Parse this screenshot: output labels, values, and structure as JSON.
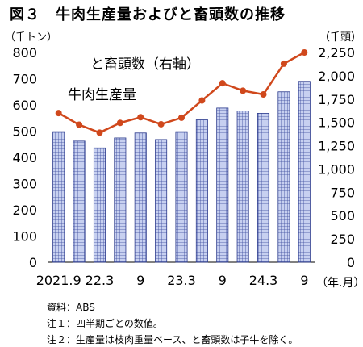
{
  "title": "図３　牛肉生産量およびと畜頭数の推移",
  "notes": [
    "資料：ABS",
    "注１：四半期ごとの数値。",
    "注２：生産量は枝肉重量ベース、と畜頭数は子牛を除く。"
  ],
  "chart_data": {
    "type": "bar",
    "categories": [
      "2021.9",
      "",
      "22.3",
      "",
      "9",
      "",
      "23.3",
      "",
      "9",
      "",
      "24.3",
      "",
      "9"
    ],
    "x_tick_labels": [
      "2021.9",
      "22.3",
      "9",
      "23.3",
      "9",
      "24.3",
      "9"
    ],
    "x_unit": "（年.月）",
    "series": [
      {
        "name": "牛肉生産量",
        "type": "bar",
        "axis": "left",
        "unit": "（千トン）",
        "values": [
          498,
          462,
          436,
          474,
          493,
          468,
          498,
          543,
          588,
          577,
          568,
          650,
          690
        ]
      },
      {
        "name": "と畜頭数（右軸）",
        "type": "line",
        "axis": "right",
        "unit": "（千頭）",
        "values": [
          1600,
          1475,
          1390,
          1495,
          1555,
          1480,
          1550,
          1735,
          1920,
          1840,
          1800,
          2130,
          2250
        ]
      }
    ],
    "y_left": {
      "unit": "（千トン）",
      "lim": [
        0,
        800
      ],
      "ticks": [
        0,
        100,
        200,
        300,
        400,
        500,
        600,
        700,
        800
      ]
    },
    "y_right": {
      "unit": "（千頭）",
      "lim": [
        0,
        2250
      ],
      "ticks": [
        "0",
        "250",
        "500",
        "750",
        "1,000",
        "1,250",
        "1,500",
        "1,750",
        "2,000",
        "2,250"
      ]
    },
    "grid": false,
    "colors": {
      "bar_fill": "#b4bfe8",
      "bar_stroke": "#2b3a8c",
      "line": "#d0481c"
    }
  }
}
